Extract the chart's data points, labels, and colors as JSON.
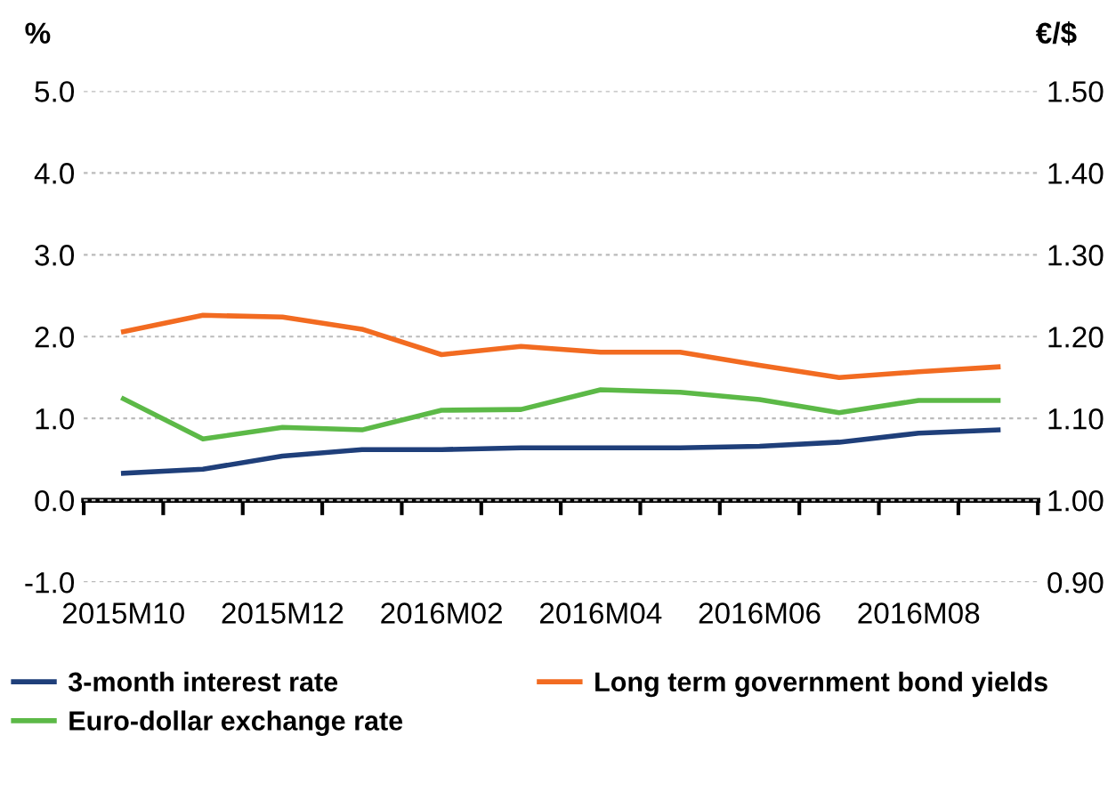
{
  "chart_data": {
    "type": "line",
    "ylabel": "%",
    "y2label": "€/$",
    "categories": [
      "2015M10",
      null,
      "2015M12",
      null,
      "2016M02",
      null,
      "2016M04",
      null,
      "2016M06",
      null,
      "2016M08",
      null
    ],
    "series": [
      {
        "name": "3-month interest rate",
        "color": "#1f3f7a",
        "values": [
          0.33,
          0.38,
          0.54,
          0.62,
          0.62,
          0.64,
          0.64,
          0.64,
          0.66,
          0.71,
          0.82,
          0.86
        ]
      },
      {
        "name": "Long term government bond yields",
        "color": "#f26b21",
        "values": [
          2.06,
          2.26,
          2.24,
          2.09,
          1.78,
          1.88,
          1.81,
          1.81,
          1.65,
          1.5,
          1.57,
          1.63
        ]
      },
      {
        "name": "Euro-dollar exchange rate",
        "color": "#5cb947",
        "axis": "y2",
        "values": [
          1.124,
          1.075,
          1.089,
          1.086,
          1.11,
          1.111,
          1.135,
          1.132,
          1.123,
          1.107,
          1.122,
          1.122
        ]
      }
    ],
    "ylim": [
      -1,
      5
    ],
    "yticks": [
      {
        "value": -1,
        "label": "-1.0"
      },
      {
        "value": 0,
        "label": "0.0"
      },
      {
        "value": 1,
        "label": "1.0"
      },
      {
        "value": 2,
        "label": "2.0"
      },
      {
        "value": 3,
        "label": "3.0"
      },
      {
        "value": 4,
        "label": "4.0"
      },
      {
        "value": 5,
        "label": "5.0"
      }
    ],
    "y2lim": [
      0.9,
      1.5
    ],
    "y2ticks": [
      {
        "value": 0.9,
        "label": "0.90"
      },
      {
        "value": 1.0,
        "label": "1.00"
      },
      {
        "value": 1.1,
        "label": "1.10"
      },
      {
        "value": 1.2,
        "label": "1.20"
      },
      {
        "value": 1.3,
        "label": "1.30"
      },
      {
        "value": 1.4,
        "label": "1.40"
      },
      {
        "value": 1.5,
        "label": "1.50"
      }
    ],
    "grid": "y",
    "legend": "bottom",
    "marker": "none",
    "line_style": "solid"
  }
}
